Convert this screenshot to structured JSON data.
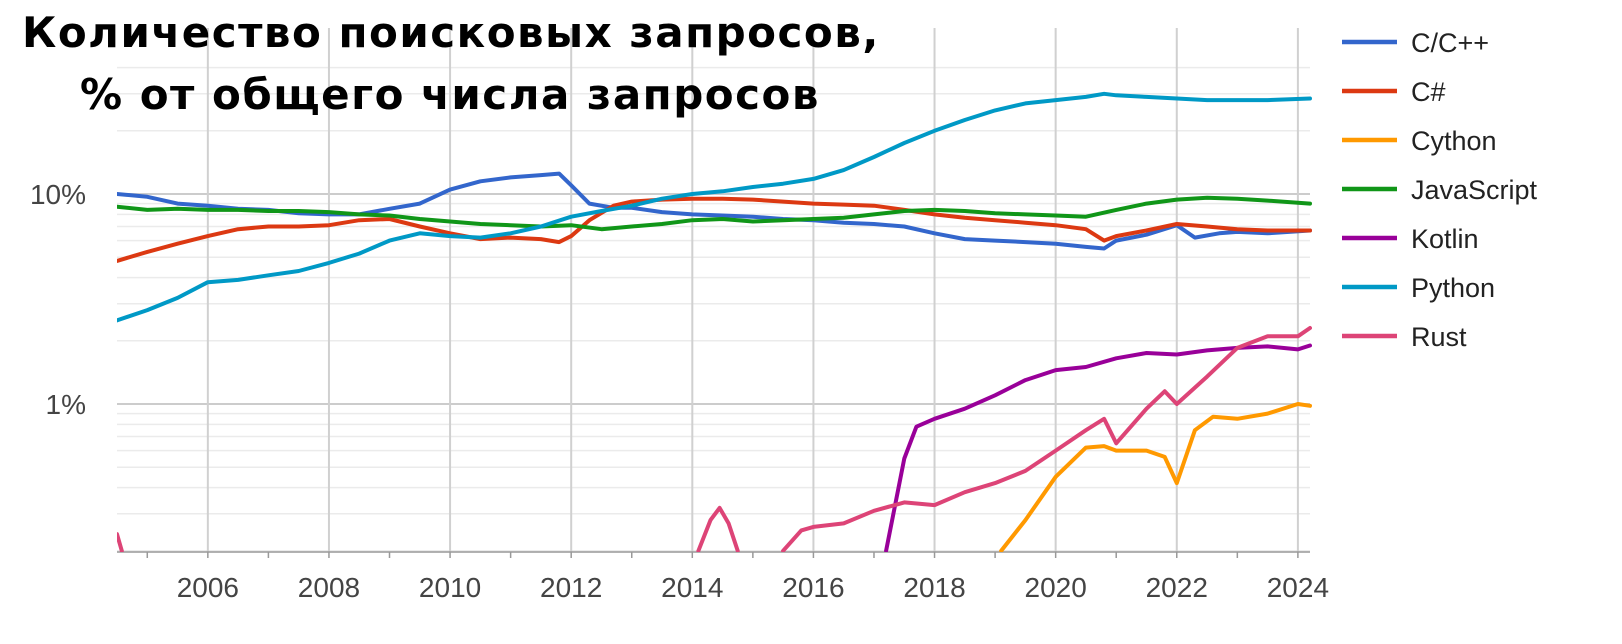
{
  "title": {
    "line1": "Количество поисковых запросов,",
    "line2": "% от общего числа запросов"
  },
  "chart_data": {
    "type": "line",
    "title": "Количество поисковых запросов, % от общего числа запросов",
    "xlabel": "",
    "ylabel": "",
    "xlim": [
      2004.5,
      2024.2
    ],
    "yscale": "log",
    "ylim": [
      0.2,
      40
    ],
    "x_ticks": [
      2006,
      2008,
      2010,
      2012,
      2014,
      2016,
      2018,
      2020,
      2022,
      2024
    ],
    "y_ticks": [
      {
        "value": 1,
        "label": "1%"
      },
      {
        "value": 10,
        "label": "10%"
      }
    ],
    "grid": true,
    "legend_position": "right",
    "series": [
      {
        "name": "C/C++",
        "color": "#3366cc",
        "points": [
          [
            2004.5,
            10
          ],
          [
            2005,
            9.7
          ],
          [
            2005.5,
            9
          ],
          [
            2006,
            8.8
          ],
          [
            2006.5,
            8.5
          ],
          [
            2007,
            8.4
          ],
          [
            2007.5,
            8.1
          ],
          [
            2008,
            8
          ],
          [
            2008.5,
            8
          ],
          [
            2009,
            8.5
          ],
          [
            2009.5,
            9
          ],
          [
            2010,
            10.5
          ],
          [
            2010.5,
            11.5
          ],
          [
            2011,
            12
          ],
          [
            2011.5,
            12.3
          ],
          [
            2011.8,
            12.5
          ],
          [
            2012,
            11
          ],
          [
            2012.3,
            9
          ],
          [
            2012.7,
            8.6
          ],
          [
            2013,
            8.6
          ],
          [
            2013.5,
            8.2
          ],
          [
            2014,
            8
          ],
          [
            2014.5,
            7.9
          ],
          [
            2015,
            7.8
          ],
          [
            2015.5,
            7.6
          ],
          [
            2016,
            7.5
          ],
          [
            2016.5,
            7.3
          ],
          [
            2017,
            7.2
          ],
          [
            2017.5,
            7
          ],
          [
            2018,
            6.5
          ],
          [
            2018.5,
            6.1
          ],
          [
            2019,
            6
          ],
          [
            2019.5,
            5.9
          ],
          [
            2020,
            5.8
          ],
          [
            2020.5,
            5.6
          ],
          [
            2020.8,
            5.5
          ],
          [
            2021,
            6
          ],
          [
            2021.5,
            6.4
          ],
          [
            2022,
            7.1
          ],
          [
            2022.3,
            6.2
          ],
          [
            2022.7,
            6.5
          ],
          [
            2023,
            6.6
          ],
          [
            2023.5,
            6.5
          ],
          [
            2024.2,
            6.7
          ]
        ]
      },
      {
        "name": "C#",
        "color": "#dc3912",
        "points": [
          [
            2004.5,
            4.8
          ],
          [
            2005,
            5.3
          ],
          [
            2005.5,
            5.8
          ],
          [
            2006,
            6.3
          ],
          [
            2006.5,
            6.8
          ],
          [
            2007,
            7
          ],
          [
            2007.5,
            7
          ],
          [
            2008,
            7.1
          ],
          [
            2008.5,
            7.5
          ],
          [
            2009,
            7.6
          ],
          [
            2009.5,
            7
          ],
          [
            2010,
            6.5
          ],
          [
            2010.5,
            6.1
          ],
          [
            2011,
            6.2
          ],
          [
            2011.5,
            6.1
          ],
          [
            2011.8,
            5.9
          ],
          [
            2012,
            6.3
          ],
          [
            2012.3,
            7.5
          ],
          [
            2012.7,
            8.8
          ],
          [
            2013,
            9.2
          ],
          [
            2013.5,
            9.4
          ],
          [
            2014,
            9.5
          ],
          [
            2014.5,
            9.5
          ],
          [
            2015,
            9.4
          ],
          [
            2015.5,
            9.2
          ],
          [
            2016,
            9
          ],
          [
            2016.5,
            8.9
          ],
          [
            2017,
            8.8
          ],
          [
            2017.5,
            8.4
          ],
          [
            2018,
            8
          ],
          [
            2018.5,
            7.7
          ],
          [
            2019,
            7.5
          ],
          [
            2019.5,
            7.3
          ],
          [
            2020,
            7.1
          ],
          [
            2020.5,
            6.8
          ],
          [
            2020.8,
            6
          ],
          [
            2021,
            6.3
          ],
          [
            2021.5,
            6.7
          ],
          [
            2022,
            7.2
          ],
          [
            2022.5,
            7
          ],
          [
            2023,
            6.8
          ],
          [
            2023.5,
            6.7
          ],
          [
            2024.2,
            6.7
          ]
        ]
      },
      {
        "name": "Cython",
        "color": "#ff9900",
        "points": [
          [
            2019.1,
            0.2
          ],
          [
            2019.5,
            0.28
          ],
          [
            2020,
            0.45
          ],
          [
            2020.5,
            0.62
          ],
          [
            2020.8,
            0.63
          ],
          [
            2021,
            0.6
          ],
          [
            2021.5,
            0.6
          ],
          [
            2021.8,
            0.56
          ],
          [
            2022,
            0.42
          ],
          [
            2022.3,
            0.75
          ],
          [
            2022.6,
            0.87
          ],
          [
            2023,
            0.85
          ],
          [
            2023.5,
            0.9
          ],
          [
            2024,
            1
          ],
          [
            2024.2,
            0.98
          ]
        ]
      },
      {
        "name": "JavaScript",
        "color": "#109618",
        "points": [
          [
            2004.5,
            8.7
          ],
          [
            2005,
            8.4
          ],
          [
            2005.5,
            8.5
          ],
          [
            2006,
            8.4
          ],
          [
            2006.5,
            8.4
          ],
          [
            2007,
            8.3
          ],
          [
            2007.5,
            8.3
          ],
          [
            2008,
            8.2
          ],
          [
            2008.5,
            8
          ],
          [
            2009,
            7.9
          ],
          [
            2009.5,
            7.6
          ],
          [
            2010,
            7.4
          ],
          [
            2010.5,
            7.2
          ],
          [
            2011,
            7.1
          ],
          [
            2011.5,
            7
          ],
          [
            2012,
            7.1
          ],
          [
            2012.5,
            6.8
          ],
          [
            2013,
            7
          ],
          [
            2013.5,
            7.2
          ],
          [
            2014,
            7.5
          ],
          [
            2014.5,
            7.6
          ],
          [
            2015,
            7.4
          ],
          [
            2015.5,
            7.5
          ],
          [
            2016,
            7.6
          ],
          [
            2016.5,
            7.7
          ],
          [
            2017,
            8
          ],
          [
            2017.5,
            8.3
          ],
          [
            2018,
            8.4
          ],
          [
            2018.5,
            8.3
          ],
          [
            2019,
            8.1
          ],
          [
            2019.5,
            8
          ],
          [
            2020,
            7.9
          ],
          [
            2020.5,
            7.8
          ],
          [
            2021,
            8.4
          ],
          [
            2021.5,
            9
          ],
          [
            2022,
            9.4
          ],
          [
            2022.5,
            9.6
          ],
          [
            2023,
            9.5
          ],
          [
            2023.5,
            9.3
          ],
          [
            2024.2,
            9
          ]
        ]
      },
      {
        "name": "Kotlin",
        "color": "#990099",
        "points": [
          [
            2017.2,
            0.2
          ],
          [
            2017.5,
            0.55
          ],
          [
            2017.7,
            0.78
          ],
          [
            2018,
            0.85
          ],
          [
            2018.5,
            0.95
          ],
          [
            2019,
            1.1
          ],
          [
            2019.5,
            1.3
          ],
          [
            2020,
            1.45
          ],
          [
            2020.5,
            1.5
          ],
          [
            2021,
            1.65
          ],
          [
            2021.5,
            1.75
          ],
          [
            2022,
            1.72
          ],
          [
            2022.5,
            1.8
          ],
          [
            2023,
            1.85
          ],
          [
            2023.5,
            1.88
          ],
          [
            2024,
            1.82
          ],
          [
            2024.2,
            1.9
          ]
        ]
      },
      {
        "name": "Python",
        "color": "#0099c6",
        "points": [
          [
            2004.5,
            2.5
          ],
          [
            2005,
            2.8
          ],
          [
            2005.5,
            3.2
          ],
          [
            2006,
            3.8
          ],
          [
            2006.5,
            3.9
          ],
          [
            2007,
            4.1
          ],
          [
            2007.5,
            4.3
          ],
          [
            2008,
            4.7
          ],
          [
            2008.5,
            5.2
          ],
          [
            2009,
            6
          ],
          [
            2009.5,
            6.5
          ],
          [
            2010,
            6.3
          ],
          [
            2010.5,
            6.2
          ],
          [
            2011,
            6.5
          ],
          [
            2011.5,
            7
          ],
          [
            2012,
            7.8
          ],
          [
            2012.5,
            8.3
          ],
          [
            2013,
            8.8
          ],
          [
            2013.5,
            9.5
          ],
          [
            2014,
            10
          ],
          [
            2014.5,
            10.3
          ],
          [
            2015,
            10.8
          ],
          [
            2015.5,
            11.2
          ],
          [
            2016,
            11.8
          ],
          [
            2016.5,
            13
          ],
          [
            2017,
            15
          ],
          [
            2017.5,
            17.5
          ],
          [
            2018,
            20
          ],
          [
            2018.5,
            22.5
          ],
          [
            2019,
            25
          ],
          [
            2019.5,
            27
          ],
          [
            2020,
            28
          ],
          [
            2020.5,
            29
          ],
          [
            2020.8,
            30
          ],
          [
            2021,
            29.5
          ],
          [
            2021.5,
            29
          ],
          [
            2022,
            28.5
          ],
          [
            2022.5,
            28
          ],
          [
            2023,
            28
          ],
          [
            2023.5,
            28
          ],
          [
            2024.2,
            28.5
          ]
        ]
      },
      {
        "name": "Rust",
        "color": "#dd4477",
        "segments": [
          [
            [
              2004.5,
              0.24
            ],
            [
              2004.58,
              0.2
            ]
          ],
          [
            [
              2014.1,
              0.2
            ],
            [
              2014.3,
              0.28
            ],
            [
              2014.45,
              0.32
            ],
            [
              2014.6,
              0.27
            ],
            [
              2014.75,
              0.2
            ]
          ],
          [
            [
              2015.5,
              0.2
            ],
            [
              2015.8,
              0.25
            ],
            [
              2016,
              0.26
            ],
            [
              2016.5,
              0.27
            ],
            [
              2017,
              0.31
            ],
            [
              2017.5,
              0.34
            ],
            [
              2018,
              0.33
            ],
            [
              2018.5,
              0.38
            ],
            [
              2019,
              0.42
            ],
            [
              2019.5,
              0.48
            ],
            [
              2020,
              0.6
            ],
            [
              2020.5,
              0.75
            ],
            [
              2020.8,
              0.85
            ],
            [
              2021,
              0.65
            ],
            [
              2021.5,
              0.95
            ],
            [
              2021.8,
              1.15
            ],
            [
              2022,
              1
            ],
            [
              2022.5,
              1.35
            ],
            [
              2023,
              1.85
            ],
            [
              2023.5,
              2.1
            ],
            [
              2024,
              2.1
            ],
            [
              2024.2,
              2.3
            ]
          ]
        ]
      }
    ]
  }
}
